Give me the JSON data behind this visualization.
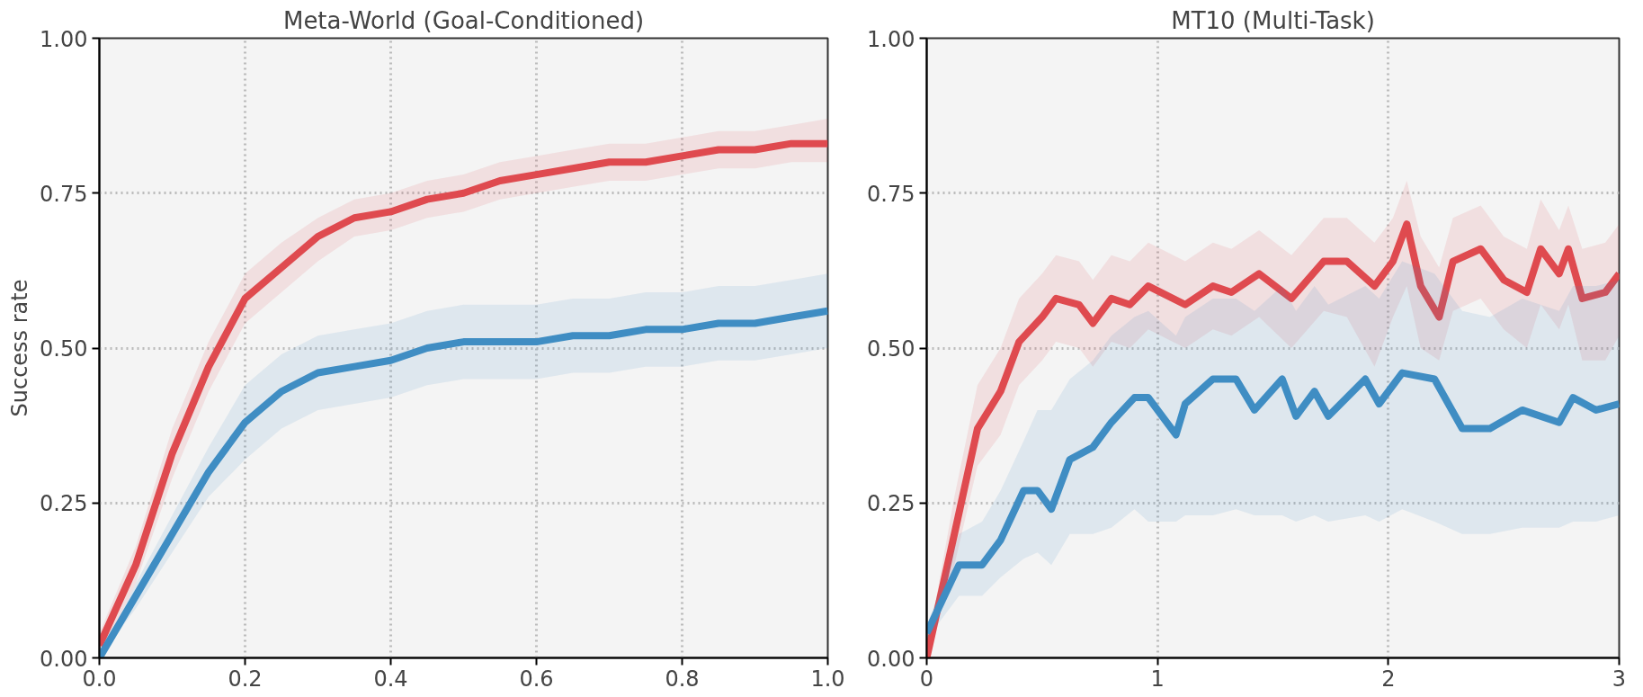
{
  "chart_data": [
    {
      "type": "line",
      "title": "Meta-World (Goal-Conditioned)",
      "ylabel": "Success rate",
      "x": [
        0,
        0.05,
        0.1,
        0.15,
        0.2,
        0.25,
        0.3,
        0.35,
        0.4,
        0.45,
        0.5,
        0.55,
        0.6,
        0.65,
        0.7,
        0.75,
        0.8,
        0.85,
        0.9,
        0.95,
        1.0
      ],
      "series": [
        {
          "color": "#df4a4f",
          "values": [
            0.02,
            0.15,
            0.33,
            0.47,
            0.58,
            0.63,
            0.68,
            0.71,
            0.72,
            0.74,
            0.75,
            0.77,
            0.78,
            0.79,
            0.8,
            0.8,
            0.81,
            0.82,
            0.82,
            0.83,
            0.83
          ],
          "lower": [
            0.0,
            0.12,
            0.29,
            0.43,
            0.54,
            0.59,
            0.64,
            0.68,
            0.69,
            0.71,
            0.72,
            0.74,
            0.75,
            0.76,
            0.77,
            0.77,
            0.78,
            0.79,
            0.79,
            0.8,
            0.8
          ],
          "upper": [
            0.04,
            0.18,
            0.37,
            0.51,
            0.62,
            0.67,
            0.71,
            0.74,
            0.75,
            0.77,
            0.78,
            0.8,
            0.81,
            0.82,
            0.83,
            0.83,
            0.84,
            0.85,
            0.85,
            0.86,
            0.87
          ]
        },
        {
          "color": "#3f8dc3",
          "values": [
            0.0,
            0.1,
            0.2,
            0.3,
            0.38,
            0.43,
            0.46,
            0.47,
            0.48,
            0.5,
            0.51,
            0.51,
            0.51,
            0.52,
            0.52,
            0.53,
            0.53,
            0.54,
            0.54,
            0.55,
            0.56
          ],
          "lower": [
            0.0,
            0.08,
            0.17,
            0.26,
            0.32,
            0.37,
            0.4,
            0.41,
            0.42,
            0.44,
            0.45,
            0.45,
            0.45,
            0.46,
            0.46,
            0.47,
            0.47,
            0.48,
            0.48,
            0.49,
            0.5
          ],
          "upper": [
            0.0,
            0.12,
            0.23,
            0.34,
            0.44,
            0.49,
            0.52,
            0.53,
            0.54,
            0.56,
            0.57,
            0.57,
            0.57,
            0.58,
            0.58,
            0.59,
            0.59,
            0.6,
            0.6,
            0.61,
            0.62
          ]
        }
      ],
      "xlim": [
        0,
        1
      ],
      "ylim": [
        0,
        1
      ],
      "xticks": [
        {
          "value": 0,
          "label": "0.0"
        },
        {
          "value": 0.2,
          "label": "0.2"
        },
        {
          "value": 0.4,
          "label": "0.4"
        },
        {
          "value": 0.6,
          "label": "0.6"
        },
        {
          "value": 0.8,
          "label": "0.8"
        },
        {
          "value": 1,
          "label": "1.0"
        }
      ],
      "yticks": [
        {
          "value": 0,
          "label": "0.00"
        },
        {
          "value": 0.25,
          "label": "0.25"
        },
        {
          "value": 0.5,
          "label": "0.50"
        },
        {
          "value": 0.75,
          "label": "0.75"
        },
        {
          "value": 1,
          "label": "1.00"
        }
      ],
      "grid": true,
      "line_style": "solid",
      "marker": "none"
    },
    {
      "type": "line",
      "title": "MT10 (Multi-Task)",
      "series": [
        {
          "color": "#df4a4f",
          "x": [
            0,
            0.12,
            0.22,
            0.32,
            0.4,
            0.5,
            0.56,
            0.66,
            0.72,
            0.8,
            0.88,
            0.96,
            1.12,
            1.24,
            1.32,
            1.44,
            1.58,
            1.72,
            1.82,
            1.94,
            2.02,
            2.08,
            2.14,
            2.22,
            2.28,
            2.4,
            2.5,
            2.6,
            2.66,
            2.74,
            2.78,
            2.84,
            2.94,
            3.0
          ],
          "values": [
            0,
            0.2,
            0.37,
            0.43,
            0.51,
            0.55,
            0.58,
            0.57,
            0.54,
            0.58,
            0.57,
            0.6,
            0.57,
            0.6,
            0.59,
            0.62,
            0.58,
            0.64,
            0.64,
            0.6,
            0.64,
            0.7,
            0.6,
            0.55,
            0.64,
            0.66,
            0.61,
            0.59,
            0.66,
            0.62,
            0.66,
            0.58,
            0.59,
            0.62
          ],
          "lower": [
            0,
            0.15,
            0.31,
            0.36,
            0.44,
            0.48,
            0.51,
            0.5,
            0.47,
            0.51,
            0.5,
            0.53,
            0.5,
            0.53,
            0.52,
            0.55,
            0.5,
            0.56,
            0.55,
            0.47,
            0.55,
            0.6,
            0.5,
            0.48,
            0.56,
            0.58,
            0.53,
            0.5,
            0.57,
            0.53,
            0.57,
            0.48,
            0.48,
            0.52
          ],
          "upper": [
            0.01,
            0.26,
            0.44,
            0.5,
            0.58,
            0.62,
            0.65,
            0.64,
            0.61,
            0.65,
            0.64,
            0.67,
            0.64,
            0.67,
            0.66,
            0.69,
            0.65,
            0.71,
            0.71,
            0.67,
            0.71,
            0.77,
            0.68,
            0.63,
            0.71,
            0.73,
            0.68,
            0.66,
            0.74,
            0.69,
            0.73,
            0.66,
            0.67,
            0.7
          ]
        },
        {
          "color": "#3f8dc3",
          "x": [
            0,
            0.14,
            0.24,
            0.32,
            0.42,
            0.48,
            0.54,
            0.62,
            0.72,
            0.8,
            0.9,
            0.96,
            1.08,
            1.12,
            1.24,
            1.34,
            1.42,
            1.54,
            1.6,
            1.68,
            1.74,
            1.9,
            1.96,
            2.06,
            2.2,
            2.32,
            2.44,
            2.58,
            2.74,
            2.8,
            2.9,
            3.0
          ],
          "values": [
            0.04,
            0.15,
            0.15,
            0.19,
            0.27,
            0.27,
            0.24,
            0.32,
            0.34,
            0.38,
            0.42,
            0.42,
            0.36,
            0.41,
            0.45,
            0.45,
            0.4,
            0.45,
            0.39,
            0.43,
            0.39,
            0.45,
            0.41,
            0.46,
            0.45,
            0.37,
            0.37,
            0.4,
            0.38,
            0.42,
            0.4,
            0.41
          ],
          "lower": [
            0.03,
            0.1,
            0.1,
            0.13,
            0.16,
            0.17,
            0.15,
            0.2,
            0.2,
            0.21,
            0.24,
            0.22,
            0.22,
            0.23,
            0.23,
            0.24,
            0.23,
            0.23,
            0.22,
            0.23,
            0.22,
            0.23,
            0.22,
            0.24,
            0.22,
            0.2,
            0.2,
            0.21,
            0.21,
            0.22,
            0.22,
            0.23
          ],
          "upper": [
            0.05,
            0.2,
            0.22,
            0.27,
            0.35,
            0.4,
            0.4,
            0.45,
            0.48,
            0.52,
            0.55,
            0.56,
            0.52,
            0.55,
            0.58,
            0.58,
            0.56,
            0.6,
            0.56,
            0.6,
            0.57,
            0.6,
            0.58,
            0.64,
            0.62,
            0.56,
            0.55,
            0.58,
            0.56,
            0.6,
            0.6,
            0.61
          ]
        }
      ],
      "xlim": [
        0,
        3
      ],
      "ylim": [
        0,
        1
      ],
      "xticks": [
        0,
        1,
        2,
        3
      ],
      "yticks": [
        {
          "value": 0,
          "label": "0.00"
        },
        {
          "value": 0.25,
          "label": "0.25"
        },
        {
          "value": 0.5,
          "label": "0.50"
        },
        {
          "value": 0.75,
          "label": "0.75"
        },
        {
          "value": 1,
          "label": "1.00"
        }
      ],
      "grid": true,
      "line_style": "solid",
      "marker": "none"
    }
  ]
}
